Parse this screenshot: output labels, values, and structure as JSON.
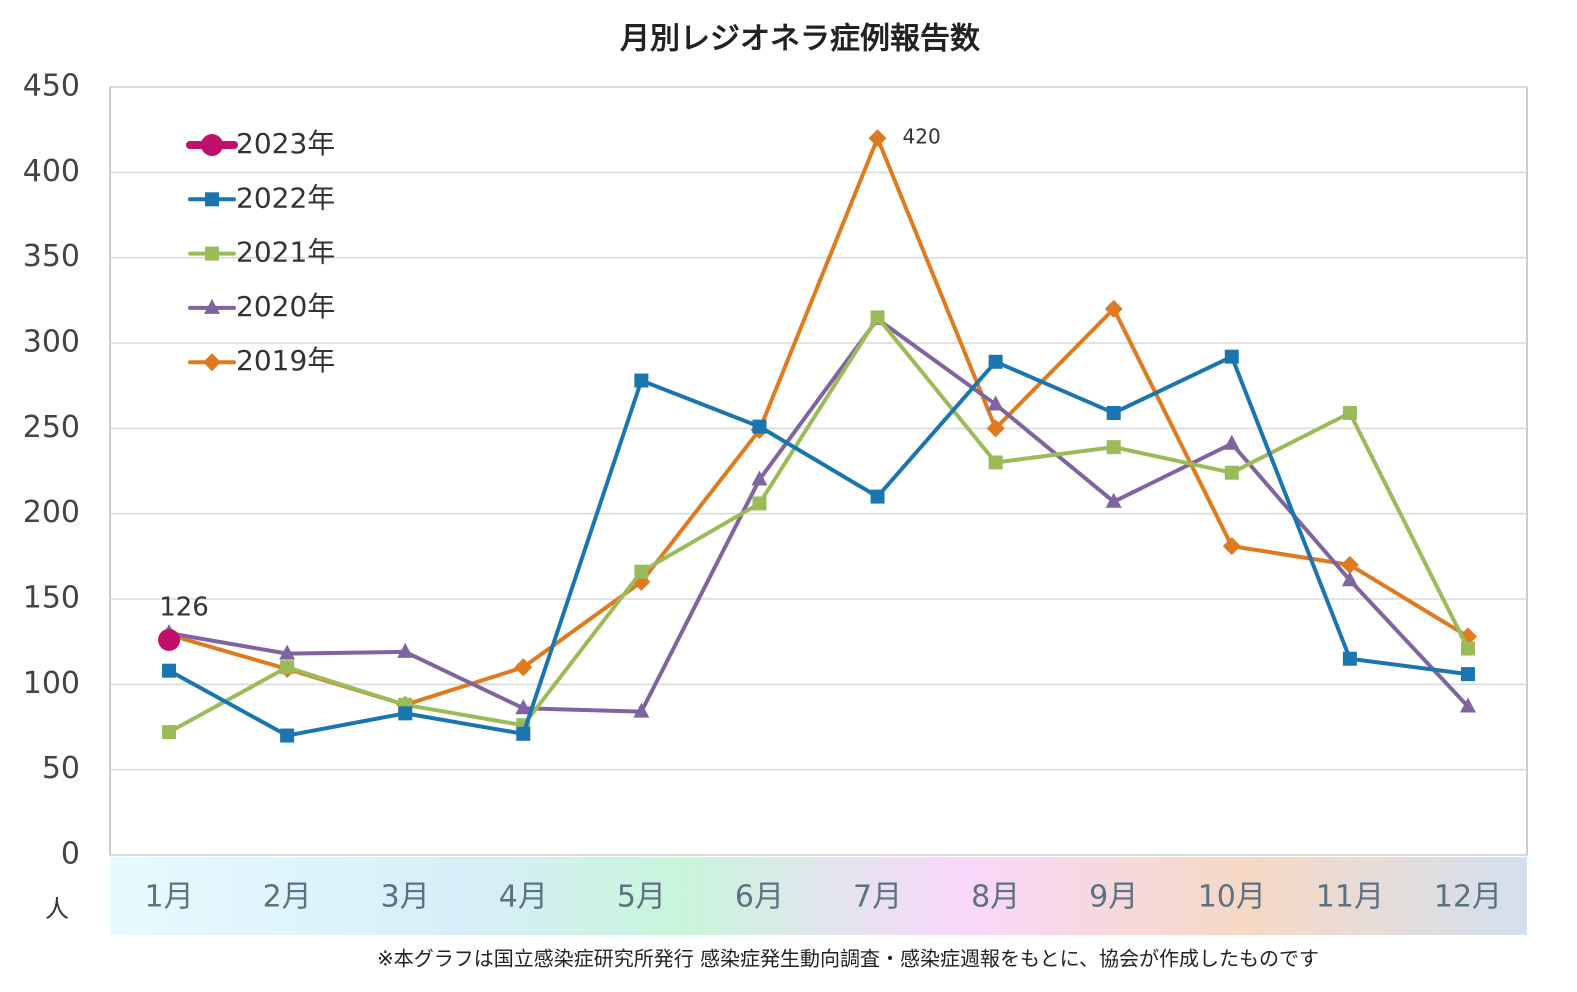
{
  "chart_data": {
    "type": "line",
    "title": "月別レジオネラ症例報告数",
    "y_label": "人",
    "footnote": "※本グラフは国立感染症研究所発行 感染症発生動向調査・感染症週報をもとに、協会が作成したものです",
    "categories": [
      "1月",
      "2月",
      "3月",
      "4月",
      "5月",
      "6月",
      "7月",
      "8月",
      "9月",
      "10月",
      "11月",
      "12月"
    ],
    "series": [
      {
        "name": "2023年",
        "color": "#c0106b",
        "marker": "circle",
        "labels_at": [
          0
        ],
        "values": [
          126,
          null,
          null,
          null,
          null,
          null,
          null,
          null,
          null,
          null,
          null,
          null
        ]
      },
      {
        "name": "2022年",
        "color": "#1a75b0",
        "marker": "square",
        "values": [
          108,
          70,
          83,
          71,
          278,
          251,
          210,
          289,
          259,
          292,
          115,
          106
        ]
      },
      {
        "name": "2021年",
        "color": "#9bbb59",
        "marker": "square",
        "values": [
          72,
          110,
          88,
          76,
          166,
          206,
          315,
          230,
          239,
          224,
          259,
          121
        ]
      },
      {
        "name": "2020年",
        "color": "#8064a2",
        "marker": "triangle",
        "values": [
          130,
          118,
          119,
          86,
          84,
          220,
          314,
          264,
          207,
          241,
          161,
          87
        ]
      },
      {
        "name": "2019年",
        "color": "#e07a1f",
        "marker": "diamond",
        "labels_at": [
          6
        ],
        "values": [
          129,
          109,
          88,
          110,
          160,
          249,
          420,
          250,
          320,
          181,
          170,
          128
        ]
      }
    ],
    "ylim": [
      0,
      450
    ],
    "yticks": [
      0,
      50,
      100,
      150,
      200,
      250,
      300,
      350,
      400,
      450
    ],
    "grid": true,
    "legend": "top-left"
  }
}
